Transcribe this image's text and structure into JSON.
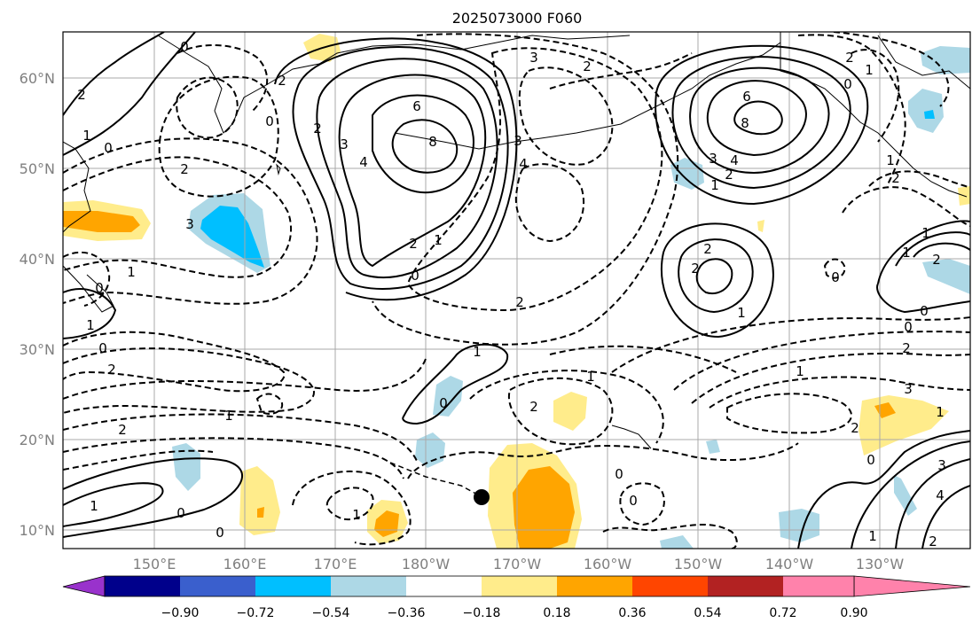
{
  "title": "2025073000 F060",
  "lat_ticks": [
    "60°N",
    "50°N",
    "40°N",
    "30°N",
    "20°N",
    "10°N"
  ],
  "lon_ticks": [
    "150°E",
    "160°E",
    "170°E",
    "180°W",
    "170°W",
    "160°W",
    "150°W",
    "140°W",
    "130°W"
  ],
  "colorbar": {
    "ticks": [
      "−0.90",
      "−0.72",
      "−0.54",
      "−0.36",
      "−0.18",
      "0.18",
      "0.36",
      "0.54",
      "0.72",
      "0.90"
    ],
    "colors": [
      "#9932cc",
      "#00008b",
      "#3a5fcd",
      "#00bfff",
      "#add8e6",
      "#ffffff",
      "#ffec8b",
      "#ffa500",
      "#ff4500",
      "#b22222",
      "#ff82ab"
    ]
  },
  "contour_labels": {
    "l_6a": "6",
    "l_8a": "8",
    "l_4a": "4",
    "l_3a": "3",
    "l_2a": "2",
    "l_1a": "1",
    "l_0a": "0",
    "l_6b": "6",
    "l_8b": "8",
    "l_4b": "4",
    "l_3b": "3",
    "l_2b": "2",
    "l_1b": "1",
    "l_2c": "2",
    "l_2d": "2",
    "l_1c": "1",
    "l_m2a": "2",
    "l_m3a": "3",
    "l_m4a": "4",
    "l_m2b": "2",
    "l_m3b": "3",
    "l_0b": "0",
    "l_m1a": "1",
    "l_m2c": "2",
    "l_0c": "0",
    "l_m2d": "2",
    "l_m1b": "1",
    "l_m2e": "2",
    "l_0d": "0",
    "l_m3c": "3",
    "l_m1c": "1",
    "l_0e": "0",
    "l_0f": "0",
    "l_1d": "1",
    "l_0g": "0",
    "l_m2f": "2",
    "l_m1d": "1",
    "l_m1e": "1",
    "l_0h": "0",
    "l_m2g": "2",
    "l_0i": "0",
    "l_m1f": "1",
    "l_0j": "0",
    "l_0k": "0",
    "l_m2h": "2",
    "l_m2i": "2",
    "l_m3d": "3",
    "l_m2j": "2",
    "l_0l": "0",
    "l_m1g": "1",
    "l_0m": "0",
    "l_m1h": "1",
    "l_0n": "0",
    "l_1e": "1",
    "l_0o": "0",
    "l_1f": "1",
    "l_m1i": "1",
    "l_2e": "2",
    "l_3e": "3",
    "l_4e": "4",
    "l_1g": "1",
    "l_m1j": "1",
    "l_m2k": "2",
    "l_m2l": "2",
    "l_m1k": "1",
    "l_m2m": "2",
    "l_2f": "2"
  }
}
